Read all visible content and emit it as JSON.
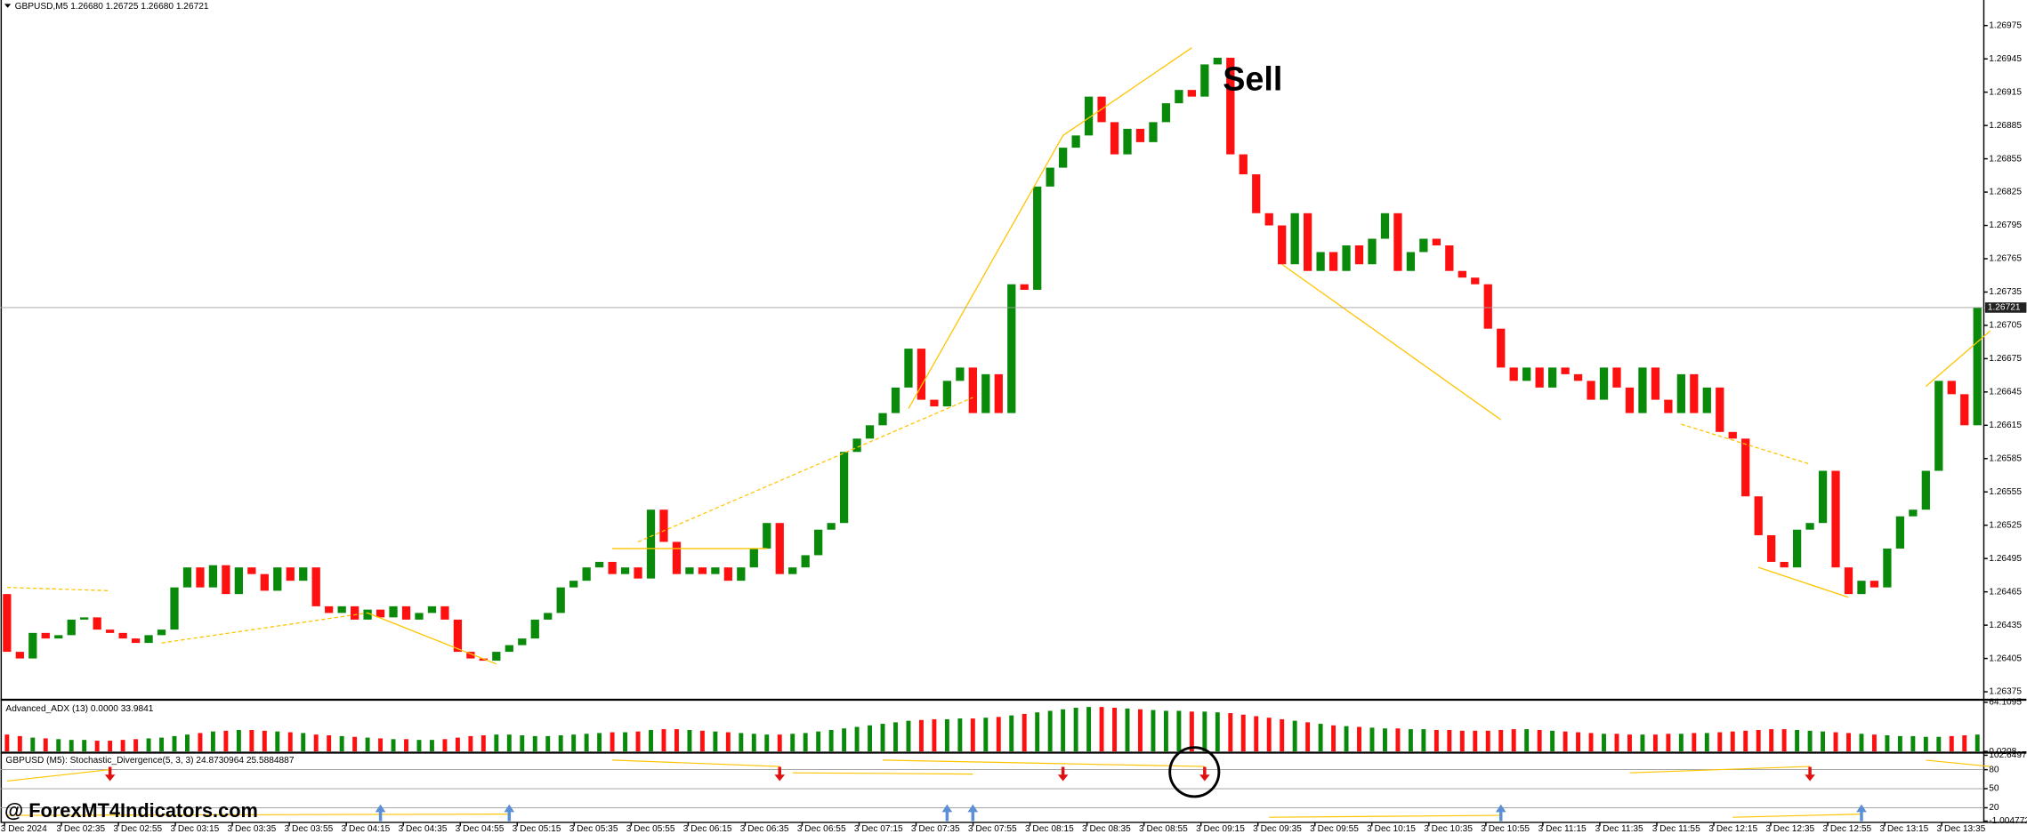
{
  "header": {
    "symbol_info": "GBPUSD,M5  1.26680 1.26725 1.26680 1.26721"
  },
  "annotation": "Sell",
  "watermark": "@ ForexMT4Indicators.com",
  "chart_data": [
    {
      "type": "candlestick",
      "open": [
        1.26463,
        1.26411,
        1.26405,
        1.26428,
        1.26423,
        1.26426,
        1.2644,
        1.26442,
        1.26431,
        1.26428,
        1.26423,
        1.26419,
        1.26426,
        1.26431,
        1.26469,
        1.26487,
        1.26469,
        1.26489,
        1.26463,
        1.26487,
        1.26481,
        1.26466,
        1.26487,
        1.26475,
        1.26487,
        1.26452,
        1.26446,
        1.26452,
        1.2644,
        1.26449,
        1.26442,
        1.26452,
        1.2644,
        1.26446,
        1.26452,
        1.2644,
        1.26411,
        1.26405,
        1.26403,
        1.26411,
        1.26417,
        1.26423,
        1.2644,
        1.26446,
        1.26469,
        1.26475,
        1.26487,
        1.26492,
        1.26481,
        1.26487,
        1.26477,
        1.26539,
        1.2651,
        1.26481,
        1.26487,
        1.26481,
        1.26487,
        1.26475,
        1.26487,
        1.26504,
        1.26527,
        1.26481,
        1.26487,
        1.26498,
        1.26521,
        1.26527,
        1.26591,
        1.26603,
        1.26615,
        1.26626,
        1.26649,
        1.26684,
        1.26638,
        1.26632,
        1.26655,
        1.26667,
        1.26626,
        1.26661,
        1.26626,
        1.26742,
        1.26737,
        1.2683,
        1.26847,
        1.26865,
        1.26876,
        1.26911,
        1.26888,
        1.26859,
        1.26882,
        1.2687,
        1.26888,
        1.26905,
        1.26917,
        1.26911,
        1.2694,
        1.26946,
        1.26859,
        1.26841,
        1.26806,
        1.26795,
        1.2676,
        1.26806,
        1.26754,
        1.26771,
        1.26754,
        1.26777,
        1.2676,
        1.26783,
        1.26806,
        1.26754,
        1.26771,
        1.26783,
        1.26777,
        1.26754,
        1.26748,
        1.26742,
        1.26702,
        1.26667,
        1.26655,
        1.26667,
        1.26649,
        1.26667,
        1.26661,
        1.26655,
        1.26638,
        1.26667,
        1.26649,
        1.26626,
        1.26667,
        1.26638,
        1.26626,
        1.26661,
        1.26626,
        1.26649,
        1.26609,
        1.26603,
        1.26551,
        1.26516,
        1.26492,
        1.26487,
        1.26521,
        1.26527,
        1.26574,
        1.26487,
        1.26463,
        1.26475,
        1.26469,
        1.26504,
        1.26533,
        1.26539,
        1.26574,
        1.26655,
        1.26643,
        1.26615
      ],
      "close": [
        1.26411,
        1.26405,
        1.26428,
        1.26423,
        1.26426,
        1.2644,
        1.26442,
        1.26431,
        1.26428,
        1.26423,
        1.26419,
        1.26426,
        1.26431,
        1.26469,
        1.26487,
        1.26469,
        1.26489,
        1.26463,
        1.26487,
        1.26481,
        1.26466,
        1.26487,
        1.26475,
        1.26487,
        1.26452,
        1.26446,
        1.26452,
        1.2644,
        1.26449,
        1.26442,
        1.26452,
        1.2644,
        1.26446,
        1.26452,
        1.2644,
        1.26411,
        1.26405,
        1.26403,
        1.26411,
        1.26417,
        1.26423,
        1.2644,
        1.26446,
        1.26469,
        1.26475,
        1.26487,
        1.26492,
        1.26481,
        1.26487,
        1.26477,
        1.26539,
        1.2651,
        1.26481,
        1.26487,
        1.26481,
        1.26487,
        1.26475,
        1.26487,
        1.26504,
        1.26527,
        1.26481,
        1.26487,
        1.26498,
        1.26521,
        1.26527,
        1.26591,
        1.26603,
        1.26615,
        1.26626,
        1.26649,
        1.26684,
        1.26638,
        1.26632,
        1.26655,
        1.26667,
        1.26626,
        1.26661,
        1.26626,
        1.26742,
        1.26737,
        1.2683,
        1.26847,
        1.26865,
        1.26876,
        1.26911,
        1.26888,
        1.26859,
        1.26882,
        1.2687,
        1.26888,
        1.26905,
        1.26917,
        1.26911,
        1.2694,
        1.26946,
        1.26859,
        1.26841,
        1.26806,
        1.26795,
        1.2676,
        1.26806,
        1.26754,
        1.26771,
        1.26754,
        1.26777,
        1.2676,
        1.26783,
        1.26806,
        1.26754,
        1.26771,
        1.26783,
        1.26777,
        1.26754,
        1.26748,
        1.26742,
        1.26702,
        1.26667,
        1.26655,
        1.26667,
        1.26649,
        1.26667,
        1.26661,
        1.26655,
        1.26638,
        1.26667,
        1.26649,
        1.26626,
        1.26667,
        1.26638,
        1.26626,
        1.26661,
        1.26626,
        1.26649,
        1.26609,
        1.26603,
        1.26551,
        1.26516,
        1.26492,
        1.26487,
        1.26521,
        1.26527,
        1.26574,
        1.26487,
        1.26463,
        1.26475,
        1.26469,
        1.26504,
        1.26533,
        1.26539,
        1.26574,
        1.26655,
        1.26643,
        1.26615,
        1.26721
      ],
      "up_color": "#0a8a0a",
      "down_color": "#ff1010",
      "ylim": [
        1.26369,
        1.26998
      ],
      "yticks": [
        1.26975,
        1.26945,
        1.26915,
        1.26885,
        1.26855,
        1.26825,
        1.26795,
        1.26765,
        1.26735,
        1.26705,
        1.26675,
        1.26645,
        1.26615,
        1.26585,
        1.26555,
        1.26525,
        1.26495,
        1.26465,
        1.26435,
        1.26405,
        1.26375
      ],
      "current_price": 1.26721,
      "time_labels": [
        "3 Dec 2024",
        "3 Dec 02:35",
        "3 Dec 02:55",
        "3 Dec 03:15",
        "3 Dec 03:35",
        "3 Dec 03:55",
        "3 Dec 04:15",
        "3 Dec 04:35",
        "3 Dec 04:55",
        "3 Dec 05:15",
        "3 Dec 05:35",
        "3 Dec 05:55",
        "3 Dec 06:15",
        "3 Dec 06:35",
        "3 Dec 06:55",
        "3 Dec 07:15",
        "3 Dec 07:35",
        "3 Dec 07:55",
        "3 Dec 08:15",
        "3 Dec 08:35",
        "3 Dec 08:55",
        "3 Dec 09:15",
        "3 Dec 09:35",
        "3 Dec 09:55",
        "3 Dec 10:15",
        "3 Dec 10:35",
        "3 Dec 10:55",
        "3 Dec 11:15",
        "3 Dec 11:35",
        "3 Dec 11:55",
        "3 Dec 12:15",
        "3 Dec 12:35",
        "3 Dec 12:55",
        "3 Dec 13:15",
        "3 Dec 13:35"
      ],
      "line_color": "#ffc400",
      "lines": [
        {
          "points": [
            [
              0,
              1.26469
            ],
            [
              8,
              1.26466
            ]
          ],
          "dashed": true
        },
        {
          "points": [
            [
              12,
              1.26419
            ],
            [
              28,
              1.26446
            ]
          ],
          "dashed": true
        },
        {
          "points": [
            [
              28,
              1.26446
            ],
            [
              38,
              1.264
            ]
          ],
          "dashed": false
        },
        {
          "points": [
            [
              47,
              1.26504
            ],
            [
              59,
              1.26504
            ]
          ],
          "dashed": false
        },
        {
          "points": [
            [
              49,
              1.2651
            ],
            [
              75,
              1.2664
            ]
          ],
          "dashed": true
        },
        {
          "points": [
            [
              70,
              1.2663
            ],
            [
              82,
              1.26876
            ],
            [
              92,
              1.26955
            ]
          ],
          "dashed": false
        },
        {
          "points": [
            [
              99,
              1.2676
            ],
            [
              116,
              1.2662
            ]
          ],
          "dashed": false
        },
        {
          "points": [
            [
              130,
              1.26616
            ],
            [
              140,
              1.2658
            ]
          ],
          "dashed": true
        },
        {
          "points": [
            [
              136,
              1.26487
            ],
            [
              143,
              1.2646
            ]
          ],
          "dashed": false
        },
        {
          "points": [
            [
              149,
              1.2665
            ],
            [
              154,
              1.267
            ]
          ],
          "dashed": false
        }
      ]
    },
    {
      "type": "bar",
      "title": "Advanced_ADX (13) 0.0000 33.9841",
      "values": [
        22,
        20,
        18,
        17,
        16,
        15,
        15,
        14,
        14,
        15,
        16,
        17,
        18,
        20,
        22,
        24,
        26,
        27,
        28,
        28,
        27,
        26,
        25,
        24,
        22,
        21,
        20,
        19,
        18,
        17,
        16,
        16,
        15,
        15,
        16,
        18,
        20,
        21,
        22,
        22,
        21,
        20,
        20,
        21,
        22,
        23,
        24,
        25,
        25,
        26,
        28,
        29,
        29,
        28,
        27,
        26,
        25,
        24,
        23,
        22,
        22,
        23,
        24,
        26,
        28,
        30,
        32,
        34,
        36,
        38,
        40,
        41,
        42,
        42,
        43,
        43,
        44,
        45,
        47,
        49,
        51,
        53,
        55,
        57,
        58,
        58,
        57,
        56,
        55,
        54,
        53,
        53,
        52,
        52,
        51,
        50,
        48,
        46,
        44,
        42,
        40,
        38,
        36,
        34,
        33,
        32,
        31,
        30,
        30,
        29,
        29,
        28,
        28,
        27,
        27,
        27,
        28,
        29,
        29,
        28,
        27,
        26,
        25,
        24,
        23,
        23,
        22,
        22,
        22,
        23,
        23,
        24,
        24,
        25,
        26,
        27,
        28,
        29,
        29,
        28,
        27,
        26,
        25,
        24,
        23,
        22,
        21,
        20,
        20,
        19,
        19,
        20,
        21,
        22
      ],
      "ylim": [
        0.0208,
        64.1095
      ],
      "yticks": [
        64.1095,
        0.0208
      ]
    },
    {
      "type": "stochastic",
      "title": "GBPUSD (M5): Stochastic_Divergence(5, 3, 3) 24.8730964 25.5884887",
      "ylim": [
        -1.0047722,
        102.649778
      ],
      "yticks": [
        102.649778,
        80,
        50,
        20,
        -1.0047722
      ],
      "up_color": "#5b8fd6",
      "down_color": "#e01010",
      "line_color": "#ffc400",
      "signals": [
        {
          "direction": "down",
          "index": 8
        },
        {
          "direction": "down",
          "index": 60
        },
        {
          "direction": "down",
          "index": 82
        },
        {
          "direction": "down",
          "index": 93
        },
        {
          "direction": "down",
          "index": 140
        },
        {
          "direction": "up",
          "index": 29
        },
        {
          "direction": "up",
          "index": 39
        },
        {
          "direction": "up",
          "index": 73
        },
        {
          "direction": "up",
          "index": 75
        },
        {
          "direction": "up",
          "index": 116
        },
        {
          "direction": "up",
          "index": 144
        }
      ],
      "lines": [
        {
          "points": [
            [
              0,
              62
            ],
            [
              8,
              80
            ]
          ]
        },
        {
          "points": [
            [
              0,
              8
            ],
            [
              39,
              10
            ]
          ]
        },
        {
          "points": [
            [
              47,
              95
            ],
            [
              60,
              85
            ]
          ]
        },
        {
          "points": [
            [
              61,
              75
            ],
            [
              75,
              73
            ]
          ]
        },
        {
          "points": [
            [
              68,
              95
            ],
            [
              93,
              85
            ]
          ]
        },
        {
          "points": [
            [
              98,
              5
            ],
            [
              116,
              8
            ]
          ]
        },
        {
          "points": [
            [
              126,
              75
            ],
            [
              140,
              85
            ]
          ]
        },
        {
          "points": [
            [
              134,
              5
            ],
            [
              144,
              10
            ]
          ]
        },
        {
          "points": [
            [
              149,
              95
            ],
            [
              154,
              85
            ]
          ]
        }
      ]
    }
  ]
}
